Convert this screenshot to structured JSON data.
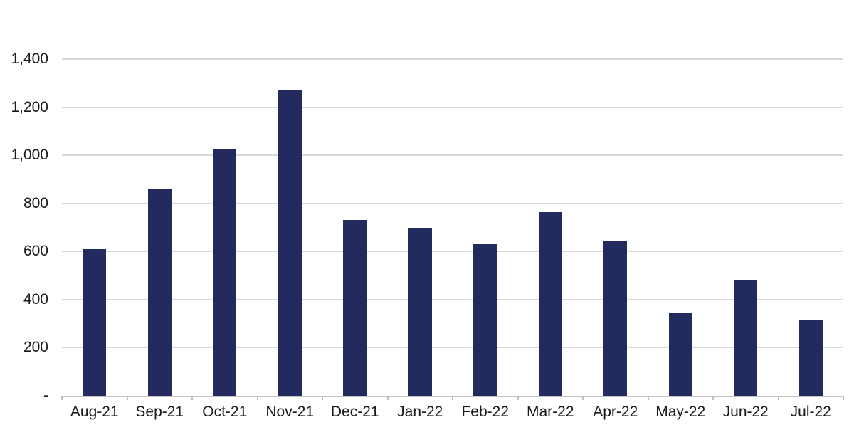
{
  "chart_data": {
    "type": "bar",
    "categories": [
      "Aug-21",
      "Sep-21",
      "Oct-21",
      "Nov-21",
      "Dec-21",
      "Jan-22",
      "Feb-22",
      "Mar-22",
      "Apr-22",
      "May-22",
      "Jun-22",
      "Jul-22"
    ],
    "values": [
      610,
      860,
      1025,
      1270,
      730,
      700,
      630,
      765,
      645,
      345,
      480,
      315
    ],
    "ylim": [
      0,
      1400
    ],
    "ytick_step": 200,
    "ytick_labels": [
      "-",
      "200",
      "400",
      "600",
      "800",
      "1,000",
      "1,200",
      "1,400"
    ],
    "grid": true,
    "legend": "none",
    "bar_color": "#232b5e",
    "gridline_color": "#d9d9d9",
    "axis_line_color": "#c6c6c6",
    "tick_color": "#bfbfbf",
    "text_color": "#1b1b1b"
  }
}
